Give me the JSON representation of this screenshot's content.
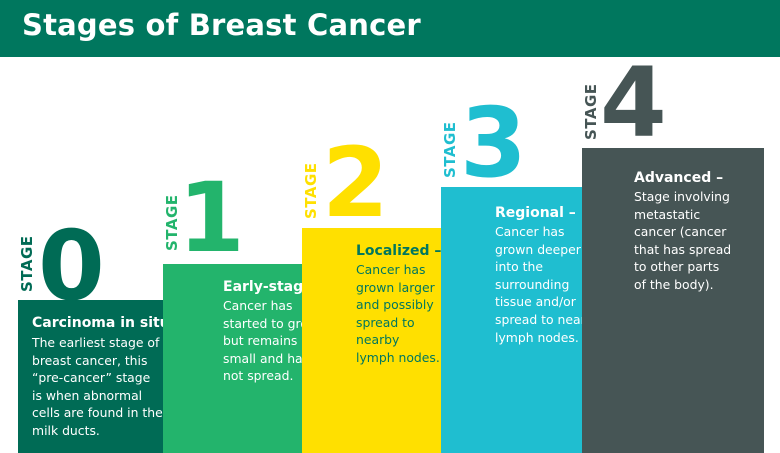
{
  "title": "Stages of Breast Cancer",
  "stages": [
    {
      "label": "STAGE",
      "number": "0",
      "title": "Carcinoma in situ –",
      "desc": [
        "The earliest stage of",
        "breast cancer, this",
        "“pre-cancer” stage",
        "is when abnormal",
        "cells are found in the",
        "milk ducts."
      ],
      "color": "#006b55",
      "text_color": "#ffffff",
      "num_color": "#006b55"
    },
    {
      "label": "STAGE",
      "number": "1",
      "title": "Early-stage –",
      "desc": [
        "Cancer has",
        "started to grow",
        "but remains",
        "small and has",
        "not spread."
      ],
      "color": "#23b46c",
      "text_color": "#ffffff",
      "num_color": "#23b46c"
    },
    {
      "label": "STAGE",
      "number": "2",
      "title": "Localized –",
      "desc": [
        "Cancer has",
        "grown larger",
        "and possibly",
        "spread to",
        "nearby",
        "lymph nodes."
      ],
      "color": "#ffe000",
      "text_color": "#00775e",
      "num_color": "#ffe000"
    },
    {
      "label": "STAGE",
      "number": "3",
      "title": "Regional –",
      "desc": [
        "Cancer has",
        "grown deeper",
        "into the",
        "surrounding",
        "tissue and/or",
        "spread to nearby",
        "lymph nodes."
      ],
      "color": "#1fbed0",
      "text_color": "#ffffff",
      "num_color": "#1fbed0"
    },
    {
      "label": "STAGE",
      "number": "4",
      "title": "Advanced –",
      "desc": [
        "Stage involving",
        "metastatic",
        "cancer (cancer",
        "that has spread",
        "to other parts",
        "of the body)."
      ],
      "color": "#465555",
      "text_color": "#ffffff",
      "num_color": "#465555"
    }
  ]
}
